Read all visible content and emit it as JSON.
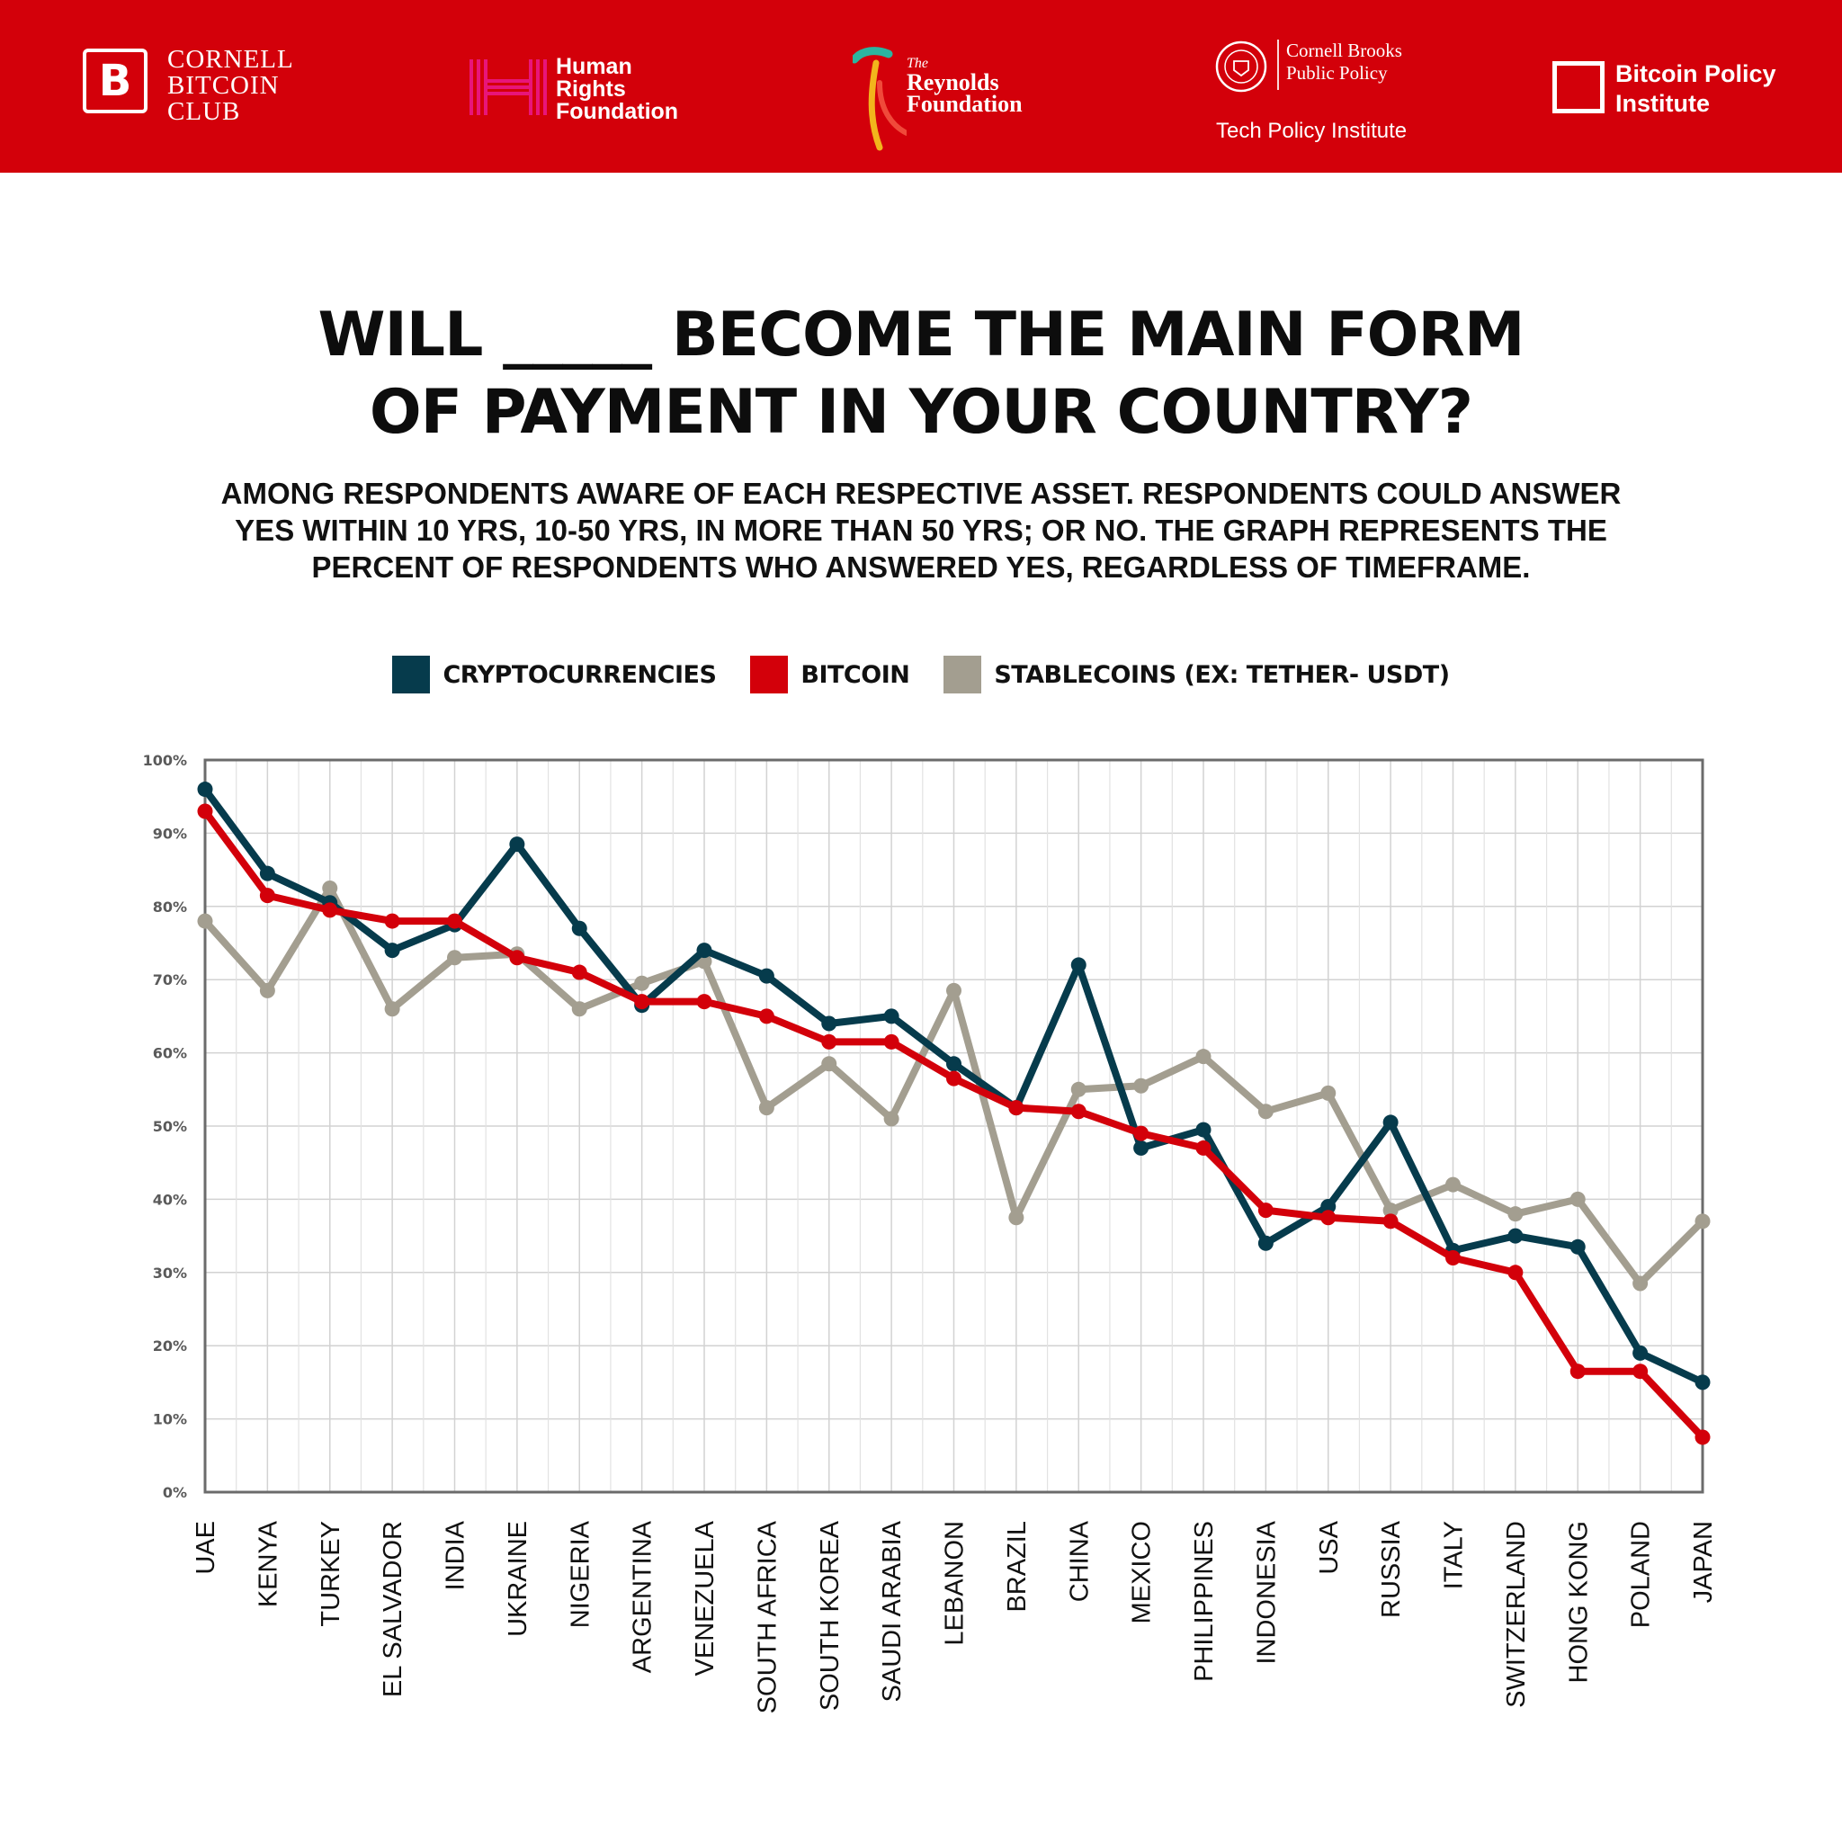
{
  "banner": {
    "background": "#d3000a",
    "logos": {
      "cornell_bitcoin_club": {
        "symbol": "B",
        "name": "CORNELL\nBITCOIN\nCLUB"
      },
      "human_rights_foundation": {
        "name": "Human\nRights\nFoundation",
        "accent": "#e8157a"
      },
      "reynolds_foundation": {
        "prefix": "The",
        "name": "Reynolds\nFoundation"
      },
      "cornell_brooks": {
        "name": "Cornell Brooks\nPublic Policy",
        "subtitle": "Tech Policy Institute"
      },
      "bitcoin_policy_institute": {
        "name": "Bitcoin Policy\nInstitute"
      }
    }
  },
  "title": {
    "line1": "WILL _____ BECOME THE MAIN FORM",
    "line2": "OF PAYMENT IN YOUR COUNTRY?"
  },
  "subtitle": {
    "line1": "AMONG RESPONDENTS AWARE OF EACH RESPECTIVE ASSET. RESPONDENTS COULD ANSWER",
    "line2": "YES WITHIN 10 YRS, 10-50 YRS, IN MORE THAN 50 YRS; OR NO. THE GRAPH REPRESENTS THE",
    "line3": "PERCENT OF RESPONDENTS WHO ANSWERED YES, REGARDLESS OF TIMEFRAME."
  },
  "legend": [
    {
      "label": "CRYPTOCURRENCIES",
      "color": "#063b4c"
    },
    {
      "label": "BITCOIN",
      "color": "#d3000a"
    },
    {
      "label": "STABLECOINS (EX: TETHER- USDT)",
      "color": "#a39e90"
    }
  ],
  "chart_data": {
    "type": "line",
    "title": "WILL _____ BECOME THE MAIN FORM OF PAYMENT IN YOUR COUNTRY?",
    "xlabel": "",
    "ylabel": "",
    "ylim": [
      0,
      100
    ],
    "yticks": [
      "0%",
      "10%",
      "20%",
      "30%",
      "40%",
      "50%",
      "60%",
      "70%",
      "80%",
      "90%",
      "100%"
    ],
    "grid": true,
    "categories": [
      "UAE",
      "KENYA",
      "TURKEY",
      "EL SALVADOR",
      "INDIA",
      "UKRAINE",
      "NIGERIA",
      "ARGENTINA",
      "VENEZUELA",
      "SOUTH AFRICA",
      "SOUTH KOREA",
      "SAUDI ARABIA",
      "LEBANON",
      "BRAZIL",
      "CHINA",
      "MEXICO",
      "PHILIPPINES",
      "INDONESIA",
      "USA",
      "RUSSIA",
      "ITALY",
      "SWITZERLAND",
      "HONG KONG",
      "POLAND",
      "JAPAN"
    ],
    "series": [
      {
        "name": "CRYPTOCURRENCIES",
        "color": "#063b4c",
        "values": [
          96,
          84.5,
          80.5,
          74,
          77.5,
          88.5,
          77,
          66.5,
          74,
          70.5,
          64,
          65,
          58.5,
          52.5,
          72,
          47,
          49.5,
          34,
          39,
          50.5,
          33,
          35,
          33.5,
          19,
          15
        ]
      },
      {
        "name": "BITCOIN",
        "color": "#d3000a",
        "values": [
          93,
          81.5,
          79.5,
          78,
          78,
          73,
          71,
          67,
          67,
          65,
          61.5,
          61.5,
          56.5,
          52.5,
          52,
          49,
          47,
          38.5,
          37.5,
          37,
          32,
          30,
          16.5,
          16.5,
          7.5
        ]
      },
      {
        "name": "STABLECOINS (EX: TETHER- USDT)",
        "color": "#a39e90",
        "values": [
          78,
          68.5,
          82.5,
          66,
          73,
          73.5,
          66,
          69.5,
          72.5,
          52.5,
          58.5,
          51,
          68.5,
          37.5,
          55,
          55.5,
          59.5,
          52,
          54.5,
          38.5,
          42,
          38,
          40,
          28.5,
          37
        ]
      }
    ],
    "legend_position": "top-center"
  }
}
